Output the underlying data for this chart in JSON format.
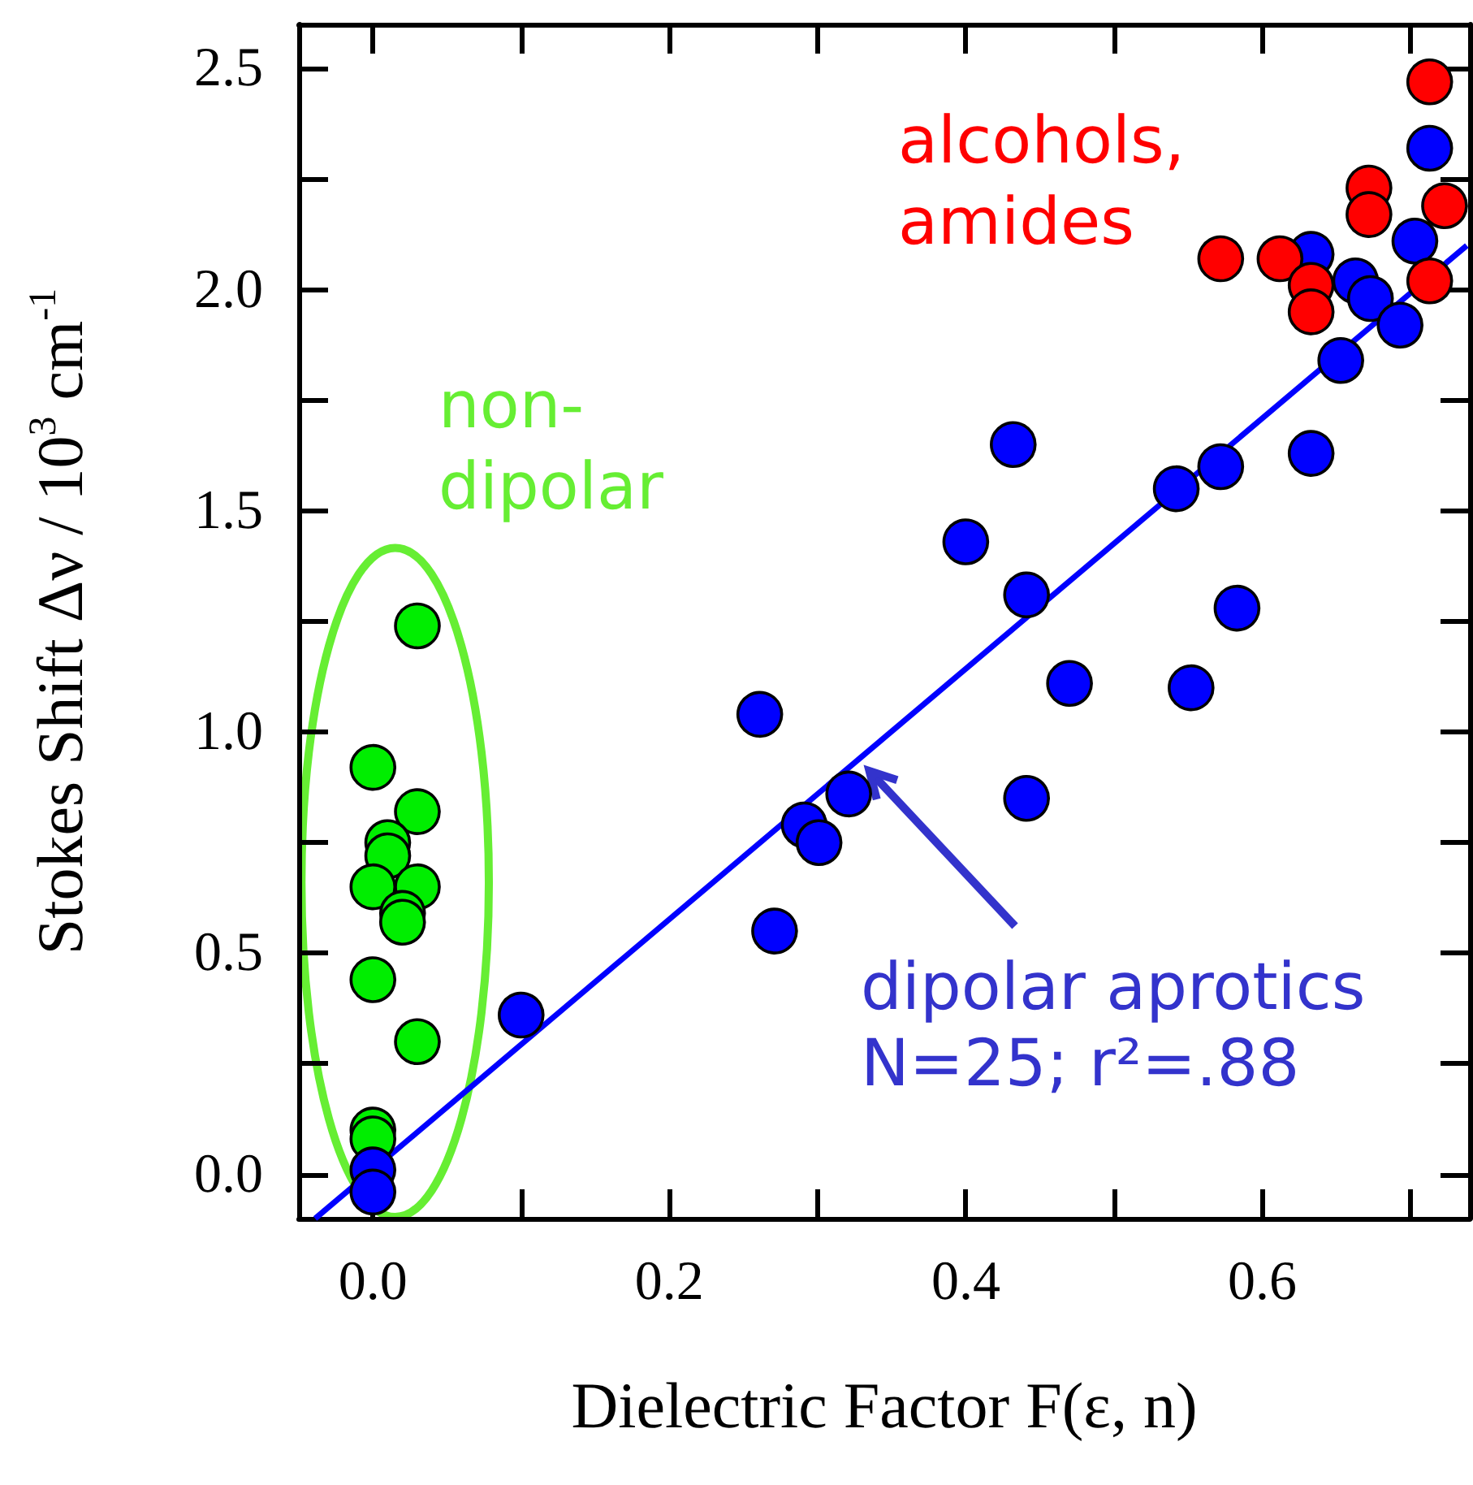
{
  "chart_data": {
    "type": "scatter",
    "xlabel": "Dielectric Factor F(ε, n)",
    "ylabel": "Stokes Shift Δν / 10$^{3}$ cm$^{-1}$",
    "xlim": [
      -0.05,
      0.74
    ],
    "ylim": [
      -0.1,
      2.6
    ],
    "xticks": [
      {
        "value": 0,
        "label": "0.0"
      },
      {
        "value": 0.2,
        "label": "0.2"
      },
      {
        "value": 0.4,
        "label": "0.4"
      },
      {
        "value": 0.6,
        "label": "0.6"
      }
    ],
    "yticks": [
      {
        "value": 0,
        "label": "0.0"
      },
      {
        "value": 0.5,
        "label": "0.5"
      },
      {
        "value": 1,
        "label": "1.0"
      },
      {
        "value": 1.5,
        "label": "1.5"
      },
      {
        "value": 2,
        "label": "2.0"
      },
      {
        "value": 2.5,
        "label": "2.5"
      }
    ],
    "grid": false,
    "marker": "circle",
    "series": [
      {
        "type": "line",
        "color": "#0000ff",
        "line_style": "solid",
        "marker": "none",
        "x": [
          -0.039,
          0.738
        ],
        "values": [
          -0.1,
          2.1
        ]
      },
      {
        "color": "#00ee00",
        "x": [
          0.03,
          0.0,
          0.03,
          0.01,
          0.01,
          0.0,
          0.03,
          0.02,
          0.02,
          0.0,
          0.03,
          0.0,
          0.0
        ],
        "values": [
          1.24,
          0.92,
          0.82,
          0.75,
          0.72,
          0.65,
          0.65,
          0.59,
          0.57,
          0.44,
          0.3,
          0.1,
          0.08
        ]
      },
      {
        "color": "#0000ff",
        "x": [
          0.0,
          0.0,
          0.1,
          0.261,
          0.321,
          0.291,
          0.301,
          0.271,
          0.4,
          0.432,
          0.441,
          0.441,
          0.47,
          0.552,
          0.542,
          0.572,
          0.583,
          0.633,
          0.633,
          0.653,
          0.663,
          0.673,
          0.693,
          0.703,
          0.713
        ],
        "values": [
          0.01,
          -0.04,
          0.36,
          1.04,
          0.86,
          0.79,
          0.75,
          0.55,
          1.43,
          1.65,
          1.31,
          0.85,
          1.11,
          1.1,
          1.55,
          1.6,
          1.28,
          1.63,
          2.08,
          1.84,
          2.02,
          1.98,
          1.92,
          2.11,
          2.32
        ]
      },
      {
        "color": "#ff0000",
        "x": [
          0.572,
          0.612,
          0.633,
          0.633,
          0.672,
          0.672,
          0.713,
          0.713,
          0.723
        ],
        "values": [
          2.07,
          2.07,
          2.01,
          1.95,
          2.23,
          2.17,
          2.47,
          2.02,
          2.19
        ]
      }
    ],
    "annotations": [
      "non-\ndipolar",
      "alcohols,\namides",
      "dipolar aprotics",
      "N=25; r²=.88"
    ]
  }
}
